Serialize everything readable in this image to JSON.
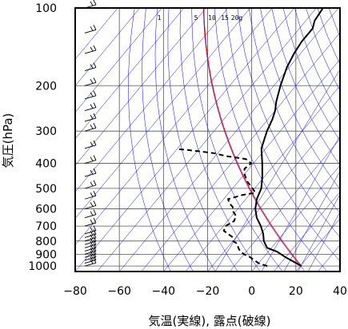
{
  "chart_data": {
    "type": "line",
    "title": "",
    "xlabel": "気温(実線), 露点(破線)",
    "ylabel": "気圧(hPa)",
    "xlim": [
      -80,
      40
    ],
    "ylim": [
      1050,
      100
    ],
    "y_scale": "log",
    "grid": true,
    "x_ticks": [
      -80,
      -60,
      -40,
      -20,
      0,
      20,
      40
    ],
    "x_tick_labels": [
      "−80",
      "−60",
      "−40",
      "−20",
      "0",
      "20",
      "40"
    ],
    "y_ticks": [
      100,
      200,
      300,
      400,
      500,
      600,
      700,
      800,
      900,
      1000
    ],
    "y_tick_labels": [
      "100",
      "200",
      "300",
      "400",
      "500",
      "600",
      "700",
      "800",
      "900",
      "1000"
    ],
    "mixing_ratio_labels": [
      "1",
      "5",
      "10",
      "15",
      "20g"
    ],
    "colors": {
      "temperature": "#000000",
      "dewpoint": "#000000",
      "reference": "#ff0000",
      "isotherms_adiabats": "#0000ff",
      "grid": "#000000"
    },
    "series": [
      {
        "name": "",
        "style": "solid",
        "points": [
          [
            20.5,
            1000
          ],
          [
            15,
            960
          ],
          [
            10,
            925
          ],
          [
            4,
            880
          ],
          [
            -2,
            850
          ],
          [
            -6,
            800
          ],
          [
            -9,
            750
          ],
          [
            -13,
            700
          ],
          [
            -18,
            650
          ],
          [
            -22,
            600
          ],
          [
            -25,
            550
          ],
          [
            -27,
            500
          ],
          [
            -31,
            450
          ],
          [
            -36,
            400
          ],
          [
            -42,
            350
          ],
          [
            -46,
            300
          ],
          [
            -48,
            270
          ],
          [
            -50,
            250
          ],
          [
            -53,
            230
          ],
          [
            -57,
            200
          ],
          [
            -61,
            170
          ],
          [
            -63,
            150
          ],
          [
            -64,
            135
          ],
          [
            -64,
            120
          ],
          [
            -66,
            112
          ],
          [
            -67,
            100
          ]
        ]
      },
      {
        "name": "",
        "style": "dashed",
        "points": [
          [
            5,
            1000
          ],
          [
            0,
            975
          ],
          [
            -3,
            950
          ],
          [
            -6,
            925
          ],
          [
            -10,
            900
          ],
          [
            -13,
            875
          ],
          [
            -15,
            850
          ],
          [
            -17,
            820
          ],
          [
            -20,
            800
          ],
          [
            -22,
            770
          ],
          [
            -25,
            750
          ],
          [
            -28,
            730
          ],
          [
            -29,
            700
          ],
          [
            -27,
            670
          ],
          [
            -28,
            640
          ],
          [
            -31,
            615
          ],
          [
            -33,
            590
          ],
          [
            -36,
            570
          ],
          [
            -38,
            550
          ],
          [
            -33,
            530
          ],
          [
            -28,
            520
          ],
          [
            -31,
            500
          ],
          [
            -36,
            470
          ],
          [
            -40,
            440
          ],
          [
            -42,
            420
          ],
          [
            -41,
            400
          ],
          [
            -45,
            385
          ],
          [
            -55,
            375
          ],
          [
            -62,
            365
          ],
          [
            -68,
            360
          ],
          [
            -75,
            355
          ],
          [
            -80,
            352
          ]
        ]
      }
    ],
    "wind_barbs_levels": [
      1000,
      975,
      950,
      925,
      900,
      875,
      850,
      825,
      800,
      775,
      750,
      700,
      650,
      600,
      550,
      500,
      450,
      400,
      350,
      300,
      275,
      250,
      225,
      200,
      175,
      150,
      125,
      100
    ]
  }
}
